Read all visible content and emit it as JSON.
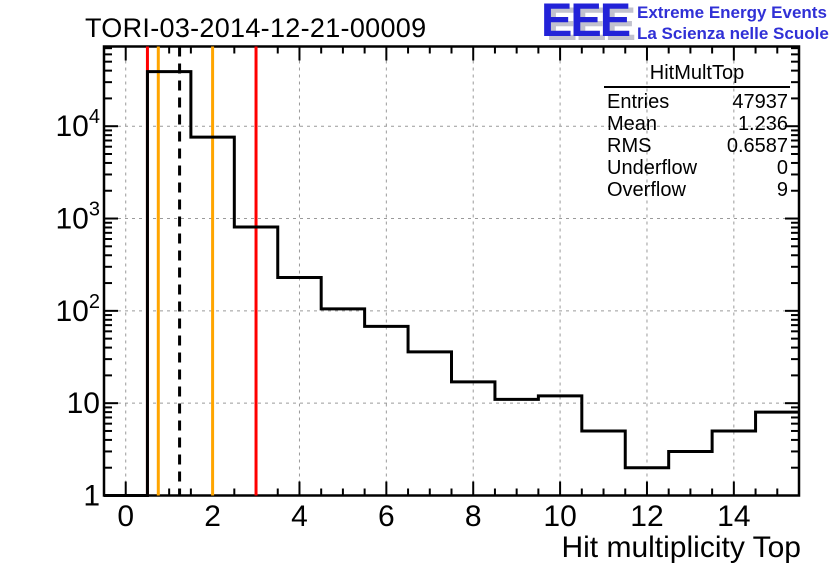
{
  "title": "TORI-03-2014-12-21-00009",
  "logo": {
    "acronym": "EEE",
    "line1": "Extreme Energy Events",
    "line2": "La Scienza nelle Scuole",
    "blue": "#2222d8",
    "shadow": "#c2c2ce"
  },
  "stats": {
    "title": "HitMultTop",
    "rows": [
      {
        "label": "Entries",
        "value": "47937"
      },
      {
        "label": "Mean",
        "value": "1.236"
      },
      {
        "label": "RMS",
        "value": "0.6587"
      },
      {
        "label": "Underflow",
        "value": "0"
      },
      {
        "label": "Overflow",
        "value": "9"
      }
    ]
  },
  "chart_data": {
    "type": "bar",
    "subtype": "step-histogram",
    "title": "TORI-03-2014-12-21-00009",
    "histogram_name": "HitMultTop",
    "xlabel": "Hit multiplicity Top",
    "ylabel": "",
    "yscale": "log",
    "grid": true,
    "grid_color": "#9a9a9a",
    "line_color": "#000000",
    "xlim": [
      -0.5,
      15.5
    ],
    "ylim": [
      1,
      73000
    ],
    "bin_width": 1,
    "bin_centers": [
      0,
      1,
      2,
      3,
      4,
      5,
      6,
      7,
      8,
      9,
      10,
      11,
      12,
      13,
      14,
      15
    ],
    "values": [
      0,
      39000,
      7616,
      810,
      230,
      105,
      68,
      36,
      17,
      11,
      12,
      5,
      2,
      3,
      5,
      8
    ],
    "x_major_ticks": [
      0,
      2,
      4,
      6,
      8,
      10,
      12,
      14
    ],
    "x_minor_step": 0.5,
    "y_major_ticks": [
      1,
      10,
      100,
      1000,
      10000
    ],
    "vlines": [
      {
        "x": 0.5,
        "color": "#ff0000",
        "style": "solid",
        "name": "red-cut-low"
      },
      {
        "x": 0.75,
        "color": "#ffa500",
        "style": "solid",
        "name": "orange-cut-low"
      },
      {
        "x": 1.24,
        "color": "#000000",
        "style": "dashed",
        "name": "mean-line"
      },
      {
        "x": 2.0,
        "color": "#ffa500",
        "style": "solid",
        "name": "orange-cut-high"
      },
      {
        "x": 3.0,
        "color": "#ff0000",
        "style": "solid",
        "name": "red-cut-high"
      }
    ]
  }
}
